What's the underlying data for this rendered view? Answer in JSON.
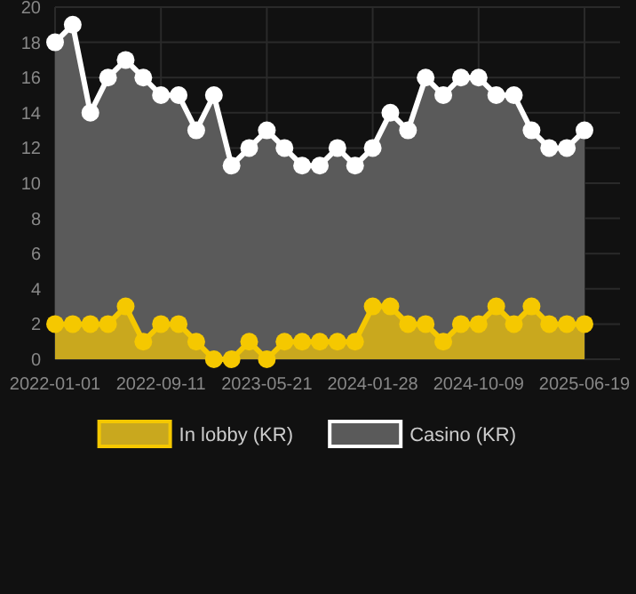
{
  "chart_data": {
    "type": "area",
    "categories": [
      "2022-01-01",
      null,
      null,
      null,
      null,
      null,
      "2022-09-11",
      null,
      null,
      null,
      null,
      null,
      "2023-05-21",
      null,
      null,
      null,
      null,
      null,
      "2024-01-28",
      null,
      null,
      null,
      null,
      null,
      "2024-10-09",
      null,
      null,
      null,
      null,
      null,
      "2025-06-19"
    ],
    "series": [
      {
        "name": "In lobby (KR)",
        "color": "#f5c800",
        "values": [
          2,
          2,
          2,
          2,
          3,
          1,
          2,
          2,
          1,
          0,
          0,
          1,
          0,
          1,
          1,
          1,
          1,
          1,
          3,
          3,
          2,
          2,
          1,
          2,
          2,
          3,
          2,
          3,
          2,
          2,
          2
        ]
      },
      {
        "name": "Casino (KR)",
        "color": "#ffffff",
        "values": [
          18,
          19,
          14,
          16,
          17,
          16,
          15,
          15,
          13,
          15,
          11,
          12,
          13,
          12,
          11,
          11,
          12,
          11,
          12,
          14,
          13,
          16,
          15,
          16,
          16,
          15,
          15,
          13,
          12,
          12,
          13
        ]
      }
    ],
    "ylim": [
      0,
      20
    ],
    "yticks": [
      0,
      2,
      4,
      6,
      8,
      10,
      12,
      14,
      16,
      18,
      20
    ],
    "grid": true,
    "legend": "bottom",
    "marker": "circle"
  }
}
